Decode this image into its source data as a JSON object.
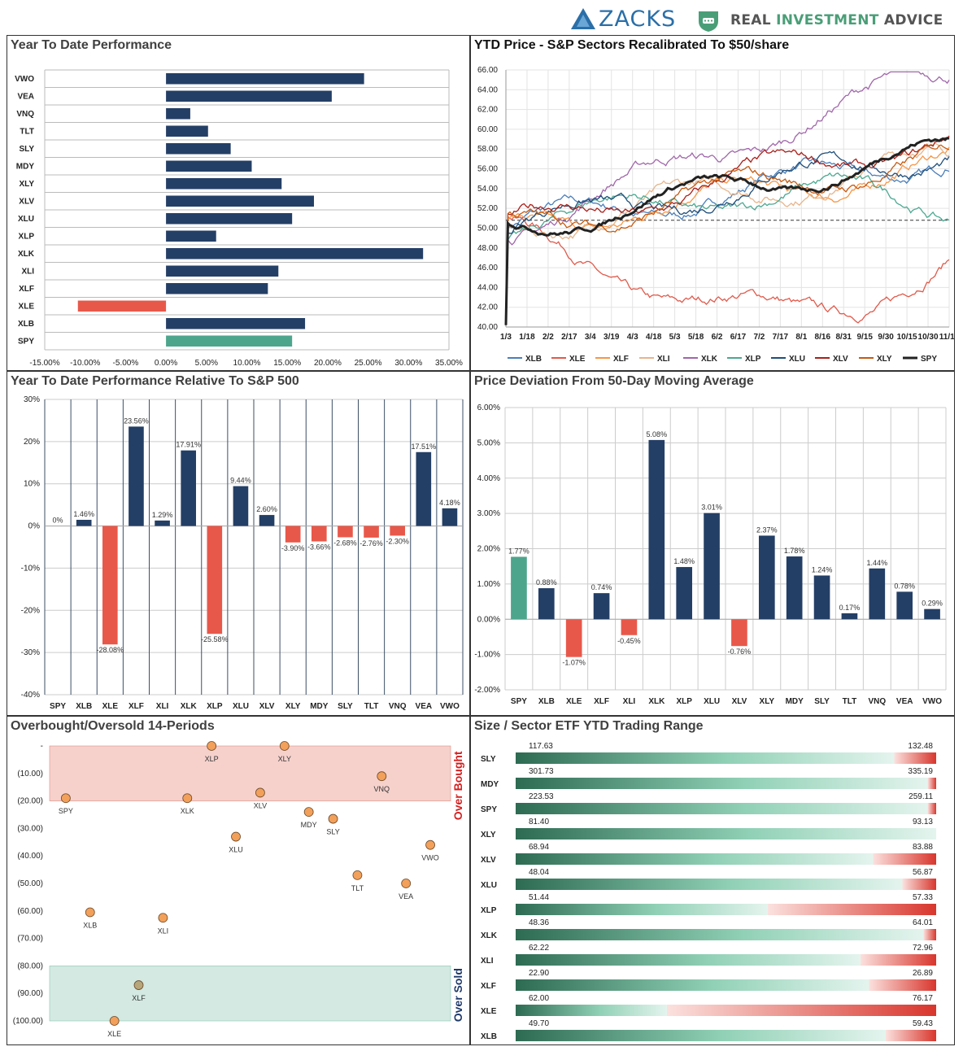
{
  "header": {
    "zacks_logo": "ZACKS",
    "ria_logo_part1": "REAL ",
    "ria_logo_part2": "INVESTMENT",
    "ria_logo_part3": " ADVICE"
  },
  "colors": {
    "navy": "#243f66",
    "red": "#e8584a",
    "teal": "#4da58c",
    "bought_band": "#f6d1cc",
    "sold_band": "#d3e9e2",
    "range_green": "#2d6b52",
    "range_red": "#d8362d"
  },
  "panels": {
    "ytd": {
      "title": "Year To Date Performance"
    },
    "price": {
      "title": "YTD Price - S&P Sectors Recalibrated To $50/share"
    },
    "relative": {
      "title": "Year To Date Performance Relative To S&P 500"
    },
    "deviation": {
      "title": "Price Deviation From 50-Day Moving Average"
    },
    "obos": {
      "title": "Overbought/Oversold 14-Periods",
      "top_label": "Over Bought",
      "bottom_label": "Over Sold"
    },
    "range": {
      "title": "Size / Sector ETF YTD Trading Range"
    }
  },
  "chart_data": [
    {
      "id": "ytd",
      "type": "bar",
      "orientation": "horizontal",
      "title": "Year To Date Performance",
      "categories": [
        "VWO",
        "VEA",
        "VNQ",
        "TLT",
        "SLY",
        "MDY",
        "XLY",
        "XLV",
        "XLU",
        "XLP",
        "XLK",
        "XLI",
        "XLF",
        "XLE",
        "XLB",
        "SPY"
      ],
      "values": [
        24.5,
        20.5,
        3.0,
        5.2,
        8.0,
        10.6,
        14.3,
        18.3,
        15.6,
        6.2,
        31.8,
        13.9,
        12.6,
        -10.9,
        17.2,
        15.6
      ],
      "xlim": [
        -15,
        35
      ],
      "xticks": [
        "-15.00%",
        "-10.00%",
        "-5.00%",
        "0.00%",
        "5.00%",
        "10.00%",
        "15.00%",
        "20.00%",
        "25.00%",
        "30.00%",
        "35.00%"
      ],
      "grid": true
    },
    {
      "id": "price",
      "type": "line",
      "title": "YTD Price - S&P Sectors Recalibrated To $50/share",
      "x_ticks": [
        "1/3",
        "1/18",
        "2/2",
        "2/17",
        "3/4",
        "3/19",
        "4/3",
        "4/18",
        "5/3",
        "5/18",
        "6/2",
        "6/17",
        "7/2",
        "7/17",
        "8/1",
        "8/16",
        "8/31",
        "9/15",
        "9/30",
        "10/15",
        "10/30",
        "11/14"
      ],
      "y_ticks": [
        "40.00",
        "42.00",
        "44.00",
        "46.00",
        "48.00",
        "50.00",
        "52.00",
        "54.00",
        "56.00",
        "58.00",
        "60.00",
        "62.00",
        "64.00",
        "66.00"
      ],
      "ylim": [
        40,
        66
      ],
      "reference_line": 50.8,
      "series": [
        {
          "name": "XLB",
          "color": "#4a7ebb",
          "end": 57.2
        },
        {
          "name": "XLE",
          "color": "#e05a4b",
          "end": 44.6
        },
        {
          "name": "XLF",
          "color": "#f79646",
          "end": 56.3
        },
        {
          "name": "XLI",
          "color": "#e6b58c",
          "end": 57.0
        },
        {
          "name": "XLK",
          "color": "#a066aa",
          "end": 65.9
        },
        {
          "name": "XLP",
          "color": "#4ba88f",
          "end": 53.1
        },
        {
          "name": "XLU",
          "color": "#1f4e79",
          "end": 57.8
        },
        {
          "name": "XLV",
          "color": "#a8201a",
          "end": 59.2
        },
        {
          "name": "XLY",
          "color": "#c55a11",
          "end": 57.2
        },
        {
          "name": "SPY",
          "color": "#222222",
          "end": 57.8
        }
      ],
      "legend": "bottom"
    },
    {
      "id": "relative",
      "type": "bar",
      "title": "Year To Date Performance Relative To S&P 500",
      "categories": [
        "SPY",
        "XLB",
        "XLE",
        "XLF",
        "XLI",
        "XLK",
        "XLP",
        "XLU",
        "XLV",
        "XLY",
        "MDY",
        "SLY",
        "TLT",
        "VNQ",
        "VEA",
        "VWO"
      ],
      "values": [
        0,
        1.46,
        -28.08,
        23.56,
        1.29,
        17.91,
        -25.58,
        9.44,
        2.6,
        -3.9,
        -3.66,
        -2.68,
        -2.76,
        -2.3,
        17.51,
        4.18
      ],
      "value_labels": [
        "0%",
        "1.46%",
        "-28.08%",
        "23.56%",
        "1.29%",
        "17.91%",
        "-25.58%",
        "9.44%",
        "2.60%",
        "-3.90%",
        "-3.66%",
        "-2.68%",
        "-2.76%",
        "-2.30%",
        "17.51%",
        "4.18%"
      ],
      "ylim": [
        -40,
        30
      ],
      "yticks": [
        "30%",
        "20%",
        "10%",
        "0%",
        "-10%",
        "-20%",
        "-30%",
        "-40%"
      ]
    },
    {
      "id": "deviation",
      "type": "bar",
      "title": "Price Deviation From 50-Day Moving Average",
      "categories": [
        "SPY",
        "XLB",
        "XLE",
        "XLF",
        "XLI",
        "XLK",
        "XLP",
        "XLU",
        "XLV",
        "XLY",
        "MDY",
        "SLY",
        "TLT",
        "VNQ",
        "VEA",
        "VWO"
      ],
      "values": [
        1.77,
        0.88,
        -1.07,
        0.74,
        -0.45,
        5.08,
        1.48,
        3.01,
        -0.76,
        2.37,
        1.78,
        1.24,
        0.17,
        1.44,
        0.78,
        0.29
      ],
      "value_labels": [
        "1.77%",
        "0.88%",
        "-1.07%",
        "0.74%",
        "-0.45%",
        "5.08%",
        "1.48%",
        "3.01%",
        "-0.76%",
        "2.37%",
        "1.78%",
        "1.24%",
        "0.17%",
        "1.44%",
        "0.78%",
        "0.29%"
      ],
      "ylim": [
        -2,
        6
      ],
      "yticks": [
        "6.00%",
        "5.00%",
        "4.00%",
        "3.00%",
        "2.00%",
        "1.00%",
        "0.00%",
        "-1.00%",
        "-2.00%"
      ]
    },
    {
      "id": "obos",
      "type": "scatter",
      "title": "Overbought/Oversold 14-Periods",
      "ylim": [
        -100,
        0
      ],
      "yticks": [
        "-",
        "(10.00)",
        "(20.00)",
        "(30.00)",
        "(40.00)",
        "(50.00)",
        "(60.00)",
        "(70.00)",
        "(80.00)",
        "(90.00)",
        "(100.00)"
      ],
      "points": [
        {
          "label": "SPY",
          "y": -19
        },
        {
          "label": "XLB",
          "y": -60.5
        },
        {
          "label": "XLE",
          "y": -100
        },
        {
          "label": "XLF",
          "y": -87
        },
        {
          "label": "XLI",
          "y": -62.5
        },
        {
          "label": "XLK",
          "y": -19
        },
        {
          "label": "XLP",
          "y": 0
        },
        {
          "label": "XLU",
          "y": -33
        },
        {
          "label": "XLV",
          "y": -17
        },
        {
          "label": "XLY",
          "y": 0
        },
        {
          "label": "MDY",
          "y": -24
        },
        {
          "label": "SLY",
          "y": -26.5
        },
        {
          "label": "TLT",
          "y": -47
        },
        {
          "label": "VNQ",
          "y": -11
        },
        {
          "label": "VEA",
          "y": -50
        },
        {
          "label": "VWO",
          "y": -36
        }
      ],
      "overbought_band": [
        -20,
        0
      ],
      "oversold_band": [
        -100,
        -80
      ]
    },
    {
      "id": "range",
      "type": "bar",
      "title": "Size / Sector ETF YTD Trading Range",
      "rows": [
        {
          "label": "SLY",
          "low": "117.63",
          "high": "132.48",
          "position": 0.9
        },
        {
          "label": "MDY",
          "low": "301.73",
          "high": "335.19",
          "position": 0.98
        },
        {
          "label": "SPY",
          "low": "223.53",
          "high": "259.11",
          "position": 0.98
        },
        {
          "label": "XLY",
          "low": "81.40",
          "high": "93.13",
          "position": 1.0
        },
        {
          "label": "XLV",
          "low": "68.94",
          "high": "83.88",
          "position": 0.85
        },
        {
          "label": "XLU",
          "low": "48.04",
          "high": "56.87",
          "position": 0.92
        },
        {
          "label": "XLP",
          "low": "51.44",
          "high": "57.33",
          "position": 0.6
        },
        {
          "label": "XLK",
          "low": "48.36",
          "high": "64.01",
          "position": 0.97
        },
        {
          "label": "XLI",
          "low": "62.22",
          "high": "72.96",
          "position": 0.82
        },
        {
          "label": "XLF",
          "low": "22.90",
          "high": "26.89",
          "position": 0.84
        },
        {
          "label": "XLE",
          "low": "62.00",
          "high": "76.17",
          "position": 0.36
        },
        {
          "label": "XLB",
          "low": "49.70",
          "high": "59.43",
          "position": 0.88
        }
      ]
    }
  ]
}
